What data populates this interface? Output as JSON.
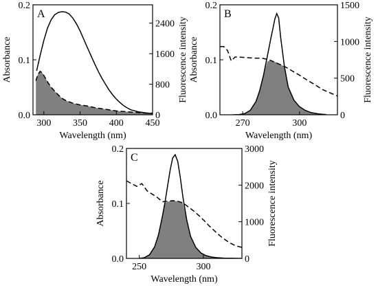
{
  "chart_data": [
    {
      "type": "line",
      "panel_label": "A",
      "xlabel": "Wavelength (nm)",
      "ylabel": "Absorbance",
      "y2label": "Fluorescence intensity",
      "xlim": [
        285,
        450
      ],
      "ylim": [
        0,
        0.2
      ],
      "y2lim": [
        0,
        2880
      ],
      "xticks": [
        300,
        350,
        400,
        450
      ],
      "yticks": [
        0.0,
        0.1,
        0.2
      ],
      "yticklabels": [
        "0.0",
        "0.1",
        "0.2"
      ],
      "y2ticks": [
        0,
        800,
        1600,
        2400
      ],
      "series": [
        {
          "role": "fluorescence",
          "style": "solid",
          "axis": "right",
          "x": [
            290,
            295,
            300,
            305,
            310,
            315,
            320,
            325,
            330,
            335,
            340,
            345,
            350,
            355,
            360,
            365,
            370,
            375,
            380,
            385,
            390,
            395,
            400,
            405,
            410,
            415,
            420,
            430,
            440,
            450
          ],
          "y": [
            1150,
            1560,
            1950,
            2270,
            2490,
            2620,
            2680,
            2700,
            2690,
            2640,
            2530,
            2380,
            2200,
            1980,
            1760,
            1550,
            1340,
            1140,
            960,
            800,
            650,
            520,
            410,
            320,
            240,
            180,
            130,
            80,
            50,
            30
          ]
        },
        {
          "role": "absorbance",
          "style": "dashed",
          "axis": "left",
          "x": [
            289,
            292,
            295,
            298,
            302,
            306,
            310,
            315,
            320,
            325,
            330,
            340,
            350,
            360,
            370,
            380,
            390,
            400,
            410,
            420,
            430,
            440,
            450
          ],
          "y": [
            0.062,
            0.074,
            0.079,
            0.076,
            0.067,
            0.058,
            0.05,
            0.043,
            0.036,
            0.03,
            0.026,
            0.021,
            0.018,
            0.016,
            0.013,
            0.011,
            0.009,
            0.007,
            0.006,
            0.005,
            0.004,
            0.003,
            0.003
          ]
        },
        {
          "role": "overlap",
          "style": "filled",
          "x": [
            289,
            292,
            295,
            298,
            302,
            306,
            310,
            315,
            320,
            325,
            330,
            340,
            350,
            360,
            370,
            380,
            390,
            400,
            410,
            420,
            430,
            440,
            450
          ],
          "y": [
            0.062,
            0.074,
            0.079,
            0.076,
            0.067,
            0.058,
            0.05,
            0.043,
            0.036,
            0.03,
            0.026,
            0.021,
            0.018,
            0.016,
            0.013,
            0.011,
            0.009,
            0.007,
            0.006,
            0.005,
            0.004,
            0.003,
            0.003
          ]
        }
      ]
    },
    {
      "type": "line",
      "panel_label": "B",
      "xlabel": "Wavelength (nm)",
      "ylabel": "Absorbance",
      "y2label": "Fluorescence intensity",
      "xlim": [
        258,
        320
      ],
      "ylim": [
        0,
        0.2
      ],
      "y2lim": [
        0,
        1500
      ],
      "xticks": [
        270,
        300
      ],
      "yticks": [
        0.0,
        0.1,
        0.2
      ],
      "yticklabels": [
        "0.0",
        "0.1",
        "0.2"
      ],
      "y2ticks": [
        0,
        500,
        1000,
        1500
      ],
      "series": [
        {
          "role": "fluorescence",
          "style": "solid",
          "axis": "right",
          "x": [
            265,
            268,
            271,
            274,
            277,
            279,
            281,
            283,
            285,
            286,
            287,
            288,
            289,
            290,
            292,
            294,
            297,
            300,
            303,
            306,
            310,
            314
          ],
          "y": [
            0,
            3,
            15,
            60,
            180,
            330,
            540,
            800,
            1060,
            1180,
            1310,
            1380,
            1320,
            1060,
            660,
            380,
            200,
            110,
            60,
            30,
            12,
            3
          ]
        },
        {
          "role": "absorbance",
          "style": "dashed",
          "axis": "left",
          "x": [
            258,
            260,
            262,
            264,
            266,
            268,
            272,
            276,
            280,
            284,
            288,
            292,
            296,
            300,
            304,
            308,
            312,
            316,
            320
          ],
          "y": [
            0.124,
            0.124,
            0.117,
            0.098,
            0.105,
            0.105,
            0.104,
            0.103,
            0.103,
            0.1,
            0.094,
            0.088,
            0.08,
            0.072,
            0.063,
            0.055,
            0.046,
            0.04,
            0.034
          ]
        },
        {
          "role": "overlap",
          "style": "filled",
          "x": [
            265,
            268,
            271,
            274,
            277,
            279,
            281,
            283,
            285,
            286,
            287,
            288,
            289,
            290,
            292,
            294,
            297,
            300,
            303,
            306,
            310,
            314
          ],
          "y": [
            0,
            0.0004,
            0.002,
            0.008,
            0.024,
            0.044,
            0.072,
            0.097,
            0.099,
            0.098,
            0.096,
            0.095,
            0.093,
            0.091,
            0.088,
            0.051,
            0.027,
            0.015,
            0.008,
            0.004,
            0.0016,
            0.0004
          ]
        }
      ]
    },
    {
      "type": "line",
      "panel_label": "C",
      "xlabel": "Wavelength (nm)",
      "ylabel": "Absorbance",
      "y2label": "Fluorescence intensity",
      "xlim": [
        240,
        330
      ],
      "ylim": [
        0,
        0.2
      ],
      "y2lim": [
        0,
        3000
      ],
      "xticks": [
        250,
        300
      ],
      "yticks": [
        0.0,
        0.1,
        0.2
      ],
      "yticklabels": [
        "0.0",
        "0.1",
        "0.2"
      ],
      "y2ticks": [
        0,
        1000,
        2000,
        3000
      ],
      "series": [
        {
          "role": "fluorescence",
          "style": "solid",
          "axis": "right",
          "x": [
            250,
            254,
            258,
            262,
            265,
            268,
            270,
            272,
            274,
            276,
            278,
            280,
            282,
            284,
            287,
            290,
            294,
            298,
            302,
            306,
            310,
            316,
            322,
            328,
            330
          ],
          "y": [
            0,
            20,
            100,
            320,
            650,
            1150,
            1520,
            1960,
            2400,
            2740,
            2830,
            2640,
            2200,
            1680,
            1050,
            600,
            300,
            150,
            75,
            40,
            20,
            8,
            3,
            0,
            0
          ]
        },
        {
          "role": "absorbance",
          "style": "dashed",
          "axis": "left",
          "x": [
            240,
            244,
            248,
            252,
            256,
            260,
            264,
            268,
            272,
            276,
            280,
            284,
            288,
            292,
            296,
            300,
            305,
            310,
            315,
            320,
            325,
            330
          ],
          "y": [
            0.141,
            0.136,
            0.131,
            0.136,
            0.123,
            0.117,
            0.111,
            0.103,
            0.104,
            0.105,
            0.104,
            0.101,
            0.094,
            0.087,
            0.079,
            0.07,
            0.058,
            0.047,
            0.037,
            0.029,
            0.023,
            0.02
          ]
        },
        {
          "role": "overlap",
          "style": "filled",
          "x": [
            250,
            254,
            258,
            262,
            265,
            268,
            270,
            272,
            274,
            276,
            278,
            280,
            282,
            284,
            287,
            290,
            294,
            298,
            302,
            306,
            310,
            316,
            322,
            328,
            330
          ],
          "y": [
            0,
            0.0013,
            0.0067,
            0.021,
            0.043,
            0.077,
            0.101,
            0.103,
            0.104,
            0.105,
            0.104,
            0.104,
            0.103,
            0.101,
            0.07,
            0.04,
            0.02,
            0.01,
            0.005,
            0.0027,
            0.0013,
            0.0005,
            0.0002,
            0,
            0
          ]
        }
      ]
    }
  ]
}
